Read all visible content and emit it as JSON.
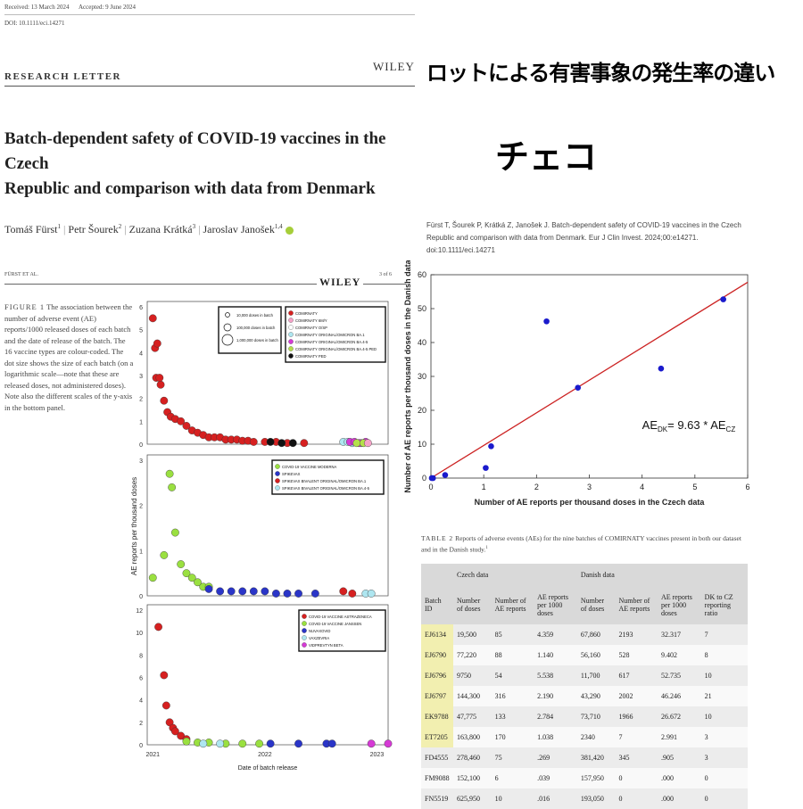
{
  "paper": {
    "received": "Received: 13 March 2024",
    "accepted": "Accepted: 9 June 2024",
    "doi": "DOI: 10.1111/eci.14271",
    "section": "RESEARCH LETTER",
    "publisher": "WILEY",
    "title_line1": "Batch-dependent safety of COVID-19 vaccines in the Czech",
    "title_line2": "Republic and comparison with data from Denmark",
    "authors": [
      "Tomáš Fürst",
      "Petr Šourek",
      "Zuzana Krátká",
      "Jaroslav Janošek"
    ],
    "author_sup": [
      "1",
      "2",
      "3",
      "1,4"
    ],
    "running_head": "FÜRST ET AL.",
    "page": "3 of 6"
  },
  "jp": {
    "title": "ロットによる有害事象の発生率の違い",
    "subtitle": "チェコ"
  },
  "citation": "Fürst T, Šourek P, Krátká Z, Janošek J. Batch-dependent safety of COVID-19 vaccines in the Czech Republic and comparison with data from Denmark. Eur J Clin Invest. 2024;00:e14271. doi:10.1111/eci.14271",
  "figure1": {
    "label": "FIGURE 1",
    "caption": "The association between the number of adverse event (AE) reports/1000 released doses of each batch and the date of release of the batch. The 16 vaccine types are colour-coded. The dot size shows the size of each batch (on a logarithmic scale—note that these are released doses, not administered doses). Note also the different scales of the y-axis in the bottom panel.",
    "ylabel": "AE reports per thousand doses",
    "xlabel": "Date of batch release",
    "size_legend": [
      "10,000 doses in batch",
      "100,000 doses in batch",
      "1,000,000 doses in batch"
    ],
    "panels": [
      {
        "yticks": [
          "0",
          "1",
          "2",
          "3",
          "4",
          "5",
          "6"
        ],
        "legend": [
          {
            "name": "COMIRNATY",
            "color": "#d62020"
          },
          {
            "name": "COMIRNATY 6M/Y",
            "color": "#f5a3c8"
          },
          {
            "name": "COMIRNATY O/SP",
            "color": "#ffffff"
          },
          {
            "name": "COMIRNATY ORIGINAL/OMICRON BA.1",
            "color": "#aee6f0"
          },
          {
            "name": "COMIRNATY ORIGINAL/OMICRON BA.4-5",
            "color": "#d63ad6"
          },
          {
            "name": "COMIRNATY ORIGINAL/OMICRON BA.4-5 PED",
            "color": "#b4e04a"
          },
          {
            "name": "COMIRNATY PED",
            "color": "#111111"
          }
        ]
      },
      {
        "yticks": [
          "0",
          "1",
          "2",
          "3"
        ],
        "legend": [
          {
            "name": "COVID-19 VACCINE MODERNA",
            "color": "#9ae040"
          },
          {
            "name": "SPIKEVAX",
            "color": "#2a35c8"
          },
          {
            "name": "SPIKEVAX BIVALENT ORIGINAL/OMICRON BA.1",
            "color": "#d62020"
          },
          {
            "name": "SPIKEVAX BIVALENT ORIGINAL/OMICRON BA.4-5",
            "color": "#aee6f0"
          }
        ]
      },
      {
        "yticks": [
          "0",
          "2",
          "4",
          "6",
          "8",
          "10",
          "12"
        ],
        "legend": [
          {
            "name": "COVID-19 VACCINE ASTRAZENECA",
            "color": "#d62020"
          },
          {
            "name": "COVID-19 VACCINE JANSSEN",
            "color": "#9ae040"
          },
          {
            "name": "NUVAXOVID",
            "color": "#2a35c8"
          },
          {
            "name": "VAXZEVRIA",
            "color": "#aee6f0"
          },
          {
            "name": "VIDPREVTYN BETA",
            "color": "#d63ad6"
          }
        ]
      }
    ],
    "xticks": [
      "2021",
      "2022",
      "2023"
    ]
  },
  "chart_data": [
    {
      "type": "scatter",
      "xlabel": "Number of AE reports per thousand doses in the Czech data",
      "ylabel": "Number of AE reports per thousand doses in the Danish data",
      "xlim": [
        0,
        6
      ],
      "ylim": [
        0,
        60
      ],
      "xticks": [
        0,
        1,
        2,
        3,
        4,
        5,
        6
      ],
      "yticks": [
        0,
        10,
        20,
        30,
        40,
        50,
        60
      ],
      "annotation": "AE",
      "annotation_sub1": "DK",
      "annotation_mid": "= 9.63 * AE",
      "annotation_sub2": "CZ",
      "fit_slope": 9.63,
      "point_color": "#1a1acc",
      "line_color": "#cc2222",
      "series": [
        {
          "points": [
            {
              "x": 0.016,
              "y": 0.0
            },
            {
              "x": 0.039,
              "y": 0.0
            },
            {
              "x": 0.269,
              "y": 0.905
            },
            {
              "x": 1.038,
              "y": 2.991
            },
            {
              "x": 1.14,
              "y": 9.402
            },
            {
              "x": 2.19,
              "y": 46.246
            },
            {
              "x": 2.784,
              "y": 26.672
            },
            {
              "x": 4.359,
              "y": 32.317
            },
            {
              "x": 5.538,
              "y": 52.735
            }
          ]
        }
      ]
    },
    {
      "type": "scatter",
      "title": "FIGURE 1",
      "xlabel": "Date of batch release",
      "ylabel": "AE reports per thousand doses",
      "panels": [
        {
          "ylim": [
            0,
            6
          ],
          "series": [
            {
              "name": "COMIRNATY",
              "color": "#d62020",
              "points": [
                {
                  "x": 2021.0,
                  "y": 5.5
                },
                {
                  "x": 2021.02,
                  "y": 4.2
                },
                {
                  "x": 2021.04,
                  "y": 4.4
                },
                {
                  "x": 2021.03,
                  "y": 2.9
                },
                {
                  "x": 2021.07,
                  "y": 2.6
                },
                {
                  "x": 2021.06,
                  "y": 2.9
                },
                {
                  "x": 2021.1,
                  "y": 1.9
                },
                {
                  "x": 2021.13,
                  "y": 1.4
                },
                {
                  "x": 2021.16,
                  "y": 1.2
                },
                {
                  "x": 2021.2,
                  "y": 1.1
                },
                {
                  "x": 2021.25,
                  "y": 1.0
                },
                {
                  "x": 2021.3,
                  "y": 0.8
                },
                {
                  "x": 2021.35,
                  "y": 0.6
                },
                {
                  "x": 2021.4,
                  "y": 0.5
                },
                {
                  "x": 2021.45,
                  "y": 0.4
                },
                {
                  "x": 2021.5,
                  "y": 0.3
                },
                {
                  "x": 2021.55,
                  "y": 0.3
                },
                {
                  "x": 2021.6,
                  "y": 0.3
                },
                {
                  "x": 2021.65,
                  "y": 0.2
                },
                {
                  "x": 2021.7,
                  "y": 0.2
                },
                {
                  "x": 2021.75,
                  "y": 0.2
                },
                {
                  "x": 2021.8,
                  "y": 0.15
                },
                {
                  "x": 2021.85,
                  "y": 0.15
                },
                {
                  "x": 2021.9,
                  "y": 0.1
                },
                {
                  "x": 2022.0,
                  "y": 0.1
                },
                {
                  "x": 2022.1,
                  "y": 0.1
                },
                {
                  "x": 2022.2,
                  "y": 0.05
                },
                {
                  "x": 2022.35,
                  "y": 0.05
                }
              ]
            },
            {
              "name": "COMIRNATY PED",
              "color": "#111111",
              "points": [
                {
                  "x": 2022.05,
                  "y": 0.1
                },
                {
                  "x": 2022.15,
                  "y": 0.05
                },
                {
                  "x": 2022.25,
                  "y": 0.05
                }
              ]
            },
            {
              "name": "COMIRNATY ORIGINAL/OMICRON BA.1",
              "color": "#aee6f0",
              "points": [
                {
                  "x": 2022.7,
                  "y": 0.1
                },
                {
                  "x": 2022.74,
                  "y": 0.1
                },
                {
                  "x": 2022.78,
                  "y": 0.05
                },
                {
                  "x": 2022.86,
                  "y": 0.05
                }
              ]
            },
            {
              "name": "COMIRNATY ORIGINAL/OMICRON BA.4-5",
              "color": "#d63ad6",
              "points": [
                {
                  "x": 2022.76,
                  "y": 0.1
                },
                {
                  "x": 2022.8,
                  "y": 0.1
                },
                {
                  "x": 2022.84,
                  "y": 0.05
                },
                {
                  "x": 2022.9,
                  "y": 0.1
                }
              ]
            },
            {
              "name": "COMIRNATY ORIGINAL/OMICRON BA.4-5 PED",
              "color": "#b4e04a",
              "points": [
                {
                  "x": 2022.82,
                  "y": 0.05
                },
                {
                  "x": 2022.88,
                  "y": 0.05
                }
              ]
            },
            {
              "name": "COMIRNATY 6M/Y",
              "color": "#f5a3c8",
              "points": [
                {
                  "x": 2022.92,
                  "y": 0.05
                }
              ]
            }
          ]
        },
        {
          "ylim": [
            0,
            3
          ],
          "series": [
            {
              "name": "COVID-19 VACCINE MODERNA",
              "color": "#9ae040",
              "points": [
                {
                  "x": 2021.0,
                  "y": 0.4
                },
                {
                  "x": 2021.1,
                  "y": 0.9
                },
                {
                  "x": 2021.15,
                  "y": 2.7
                },
                {
                  "x": 2021.17,
                  "y": 2.4
                },
                {
                  "x": 2021.2,
                  "y": 1.4
                },
                {
                  "x": 2021.25,
                  "y": 0.7
                },
                {
                  "x": 2021.3,
                  "y": 0.5
                },
                {
                  "x": 2021.35,
                  "y": 0.4
                },
                {
                  "x": 2021.4,
                  "y": 0.3
                },
                {
                  "x": 2021.45,
                  "y": 0.2
                },
                {
                  "x": 2021.5,
                  "y": 0.2
                }
              ]
            },
            {
              "name": "SPIKEVAX",
              "color": "#2a35c8",
              "points": [
                {
                  "x": 2021.5,
                  "y": 0.15
                },
                {
                  "x": 2021.6,
                  "y": 0.1
                },
                {
                  "x": 2021.7,
                  "y": 0.1
                },
                {
                  "x": 2021.8,
                  "y": 0.1
                },
                {
                  "x": 2021.9,
                  "y": 0.1
                },
                {
                  "x": 2022.0,
                  "y": 0.1
                },
                {
                  "x": 2022.1,
                  "y": 0.05
                },
                {
                  "x": 2022.2,
                  "y": 0.05
                },
                {
                  "x": 2022.3,
                  "y": 0.05
                },
                {
                  "x": 2022.45,
                  "y": 0.05
                }
              ]
            },
            {
              "name": "SPIKEVAX BIVALENT ORIGINAL/OMICRON BA.1",
              "color": "#d62020",
              "points": [
                {
                  "x": 2022.7,
                  "y": 0.1
                },
                {
                  "x": 2022.78,
                  "y": 0.05
                }
              ]
            },
            {
              "name": "SPIKEVAX BIVALENT ORIGINAL/OMICRON BA.4-5",
              "color": "#aee6f0",
              "points": [
                {
                  "x": 2022.9,
                  "y": 0.05
                },
                {
                  "x": 2022.95,
                  "y": 0.05
                }
              ]
            }
          ]
        },
        {
          "ylim": [
            0,
            12
          ],
          "series": [
            {
              "name": "COVID-19 VACCINE ASTRAZENECA",
              "color": "#d62020",
              "points": [
                {
                  "x": 2021.05,
                  "y": 10.5
                },
                {
                  "x": 2021.1,
                  "y": 6.2
                },
                {
                  "x": 2021.12,
                  "y": 3.5
                },
                {
                  "x": 2021.15,
                  "y": 2.0
                },
                {
                  "x": 2021.18,
                  "y": 1.5
                },
                {
                  "x": 2021.2,
                  "y": 1.2
                },
                {
                  "x": 2021.25,
                  "y": 0.8
                },
                {
                  "x": 2021.3,
                  "y": 0.5
                }
              ]
            },
            {
              "name": "COVID-19 VACCINE JANSSEN",
              "color": "#9ae040",
              "points": [
                {
                  "x": 2021.3,
                  "y": 0.3
                },
                {
                  "x": 2021.4,
                  "y": 0.2
                },
                {
                  "x": 2021.5,
                  "y": 0.2
                },
                {
                  "x": 2021.65,
                  "y": 0.1
                },
                {
                  "x": 2021.8,
                  "y": 0.1
                },
                {
                  "x": 2021.95,
                  "y": 0.1
                }
              ]
            },
            {
              "name": "NUVAXOVID",
              "color": "#2a35c8",
              "points": [
                {
                  "x": 2022.05,
                  "y": 0.1
                },
                {
                  "x": 2022.3,
                  "y": 0.1
                },
                {
                  "x": 2022.55,
                  "y": 0.1
                },
                {
                  "x": 2022.6,
                  "y": 0.1
                }
              ]
            },
            {
              "name": "VAXZEVRIA",
              "color": "#aee6f0",
              "points": [
                {
                  "x": 2021.45,
                  "y": 0.1
                },
                {
                  "x": 2021.6,
                  "y": 0.1
                }
              ]
            },
            {
              "name": "VIDPREVTYN BETA",
              "color": "#d63ad6",
              "points": [
                {
                  "x": 2022.95,
                  "y": 0.1
                },
                {
                  "x": 2023.1,
                  "y": 0.1
                }
              ]
            }
          ]
        }
      ]
    }
  ],
  "table2": {
    "label": "TABLE 2",
    "caption": "Reports of adverse events (AEs) for the nine batches of COMIRNATY vaccines present in both our dataset and in the Danish study.",
    "caption_sup": "1",
    "group_czech": "Czech data",
    "group_danish": "Danish data",
    "columns": [
      "Batch ID",
      "Number of doses",
      "Number of AE reports",
      "AE reports per 1000 doses",
      "Number of doses",
      "Number of AE reports",
      "AE reports per 1000 doses",
      "DK to CZ reporting ratio"
    ],
    "rows": [
      {
        "id": "EJ6134",
        "cz_doses": "19,500",
        "cz_ae": "85",
        "cz_rate": "4.359",
        "dk_doses": "67,860",
        "dk_ae": "2193",
        "dk_rate": "32.317",
        "ratio": "7",
        "hl": true
      },
      {
        "id": "EJ6790",
        "cz_doses": "77,220",
        "cz_ae": "88",
        "cz_rate": "1.140",
        "dk_doses": "56,160",
        "dk_ae": "528",
        "dk_rate": "9.402",
        "ratio": "8",
        "hl": true
      },
      {
        "id": "EJ6796",
        "cz_doses": "9750",
        "cz_ae": "54",
        "cz_rate": "5.538",
        "dk_doses": "11,700",
        "dk_ae": "617",
        "dk_rate": "52.735",
        "ratio": "10",
        "hl": true
      },
      {
        "id": "EJ6797",
        "cz_doses": "144,300",
        "cz_ae": "316",
        "cz_rate": "2.190",
        "dk_doses": "43,290",
        "dk_ae": "2002",
        "dk_rate": "46.246",
        "ratio": "21",
        "hl": true
      },
      {
        "id": "EK9788",
        "cz_doses": "47,775",
        "cz_ae": "133",
        "cz_rate": "2.784",
        "dk_doses": "73,710",
        "dk_ae": "1966",
        "dk_rate": "26.672",
        "ratio": "10",
        "hl": true
      },
      {
        "id": "ET7205",
        "cz_doses": "163,800",
        "cz_ae": "170",
        "cz_rate": "1.038",
        "dk_doses": "2340",
        "dk_ae": "7",
        "dk_rate": "2.991",
        "ratio": "3",
        "hl": true
      },
      {
        "id": "FD4555",
        "cz_doses": "278,460",
        "cz_ae": "75",
        "cz_rate": ".269",
        "dk_doses": "381,420",
        "dk_ae": "345",
        "dk_rate": ".905",
        "ratio": "3",
        "hl": false
      },
      {
        "id": "FM9088",
        "cz_doses": "152,100",
        "cz_ae": "6",
        "cz_rate": ".039",
        "dk_doses": "157,950",
        "dk_ae": "0",
        "dk_rate": ".000",
        "ratio": "0",
        "hl": false
      },
      {
        "id": "FN5519",
        "cz_doses": "625,950",
        "cz_ae": "10",
        "cz_rate": ".016",
        "dk_doses": "193,050",
        "dk_ae": "0",
        "dk_rate": ".000",
        "ratio": "0",
        "hl": false
      }
    ]
  }
}
